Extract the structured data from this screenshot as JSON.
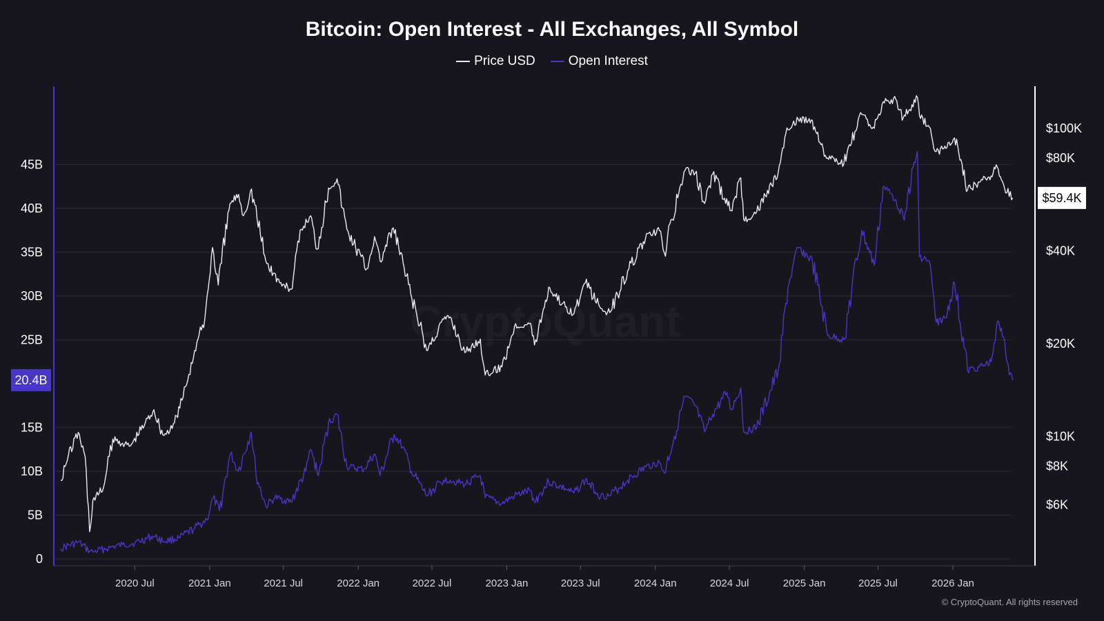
{
  "colors": {
    "background": "#17161d",
    "price": "#ececf0",
    "open_interest": "#4a35c9",
    "badge_oi": "#4a35c9",
    "grid": "#2a2a33"
  },
  "watermark": "CryptoQuant",
  "copyright": "© CryptoQuant. All rights reserved",
  "chart_data": {
    "type": "line",
    "title": "Bitcoin: Open Interest - All Exchanges, All Symbol",
    "legend": [
      "Price USD",
      "Open Interest"
    ],
    "x_range": [
      "2020-01-01",
      "2026-06-01"
    ],
    "x_ticks": [
      {
        "date": "2020-07-01",
        "label": "2020 Jul"
      },
      {
        "date": "2021-01-01",
        "label": "2021 Jan"
      },
      {
        "date": "2021-07-01",
        "label": "2021 Jul"
      },
      {
        "date": "2022-01-01",
        "label": "2022 Jan"
      },
      {
        "date": "2022-07-01",
        "label": "2022 Jul"
      },
      {
        "date": "2023-01-01",
        "label": "2023 Jan"
      },
      {
        "date": "2023-07-01",
        "label": "2023 Jul"
      },
      {
        "date": "2024-01-01",
        "label": "2024 Jan"
      },
      {
        "date": "2024-07-01",
        "label": "2024 Jul"
      },
      {
        "date": "2025-01-01",
        "label": "2025 Jan"
      },
      {
        "date": "2025-07-01",
        "label": "2025 Jul"
      },
      {
        "date": "2026-01-01",
        "label": "2026 Jan"
      }
    ],
    "left_axis": {
      "unit": "USD",
      "range": [
        0,
        50000000000
      ],
      "ticks": [
        {
          "value": 0,
          "label": "0"
        },
        {
          "value": 5000000000,
          "label": "5B"
        },
        {
          "value": 10000000000,
          "label": "10B"
        },
        {
          "value": 15000000000,
          "label": "15B"
        },
        {
          "value": 25000000000,
          "label": "25B"
        },
        {
          "value": 30000000000,
          "label": "30B"
        },
        {
          "value": 35000000000,
          "label": "35B"
        },
        {
          "value": 40000000000,
          "label": "40B"
        },
        {
          "value": 45000000000,
          "label": "45B"
        }
      ],
      "current_badge": {
        "value": 20400000000,
        "label": "20.4B"
      }
    },
    "right_axis": {
      "scale": "log",
      "range": [
        4000,
        130000
      ],
      "ticks": [
        {
          "value": 6000,
          "label": "$6K"
        },
        {
          "value": 8000,
          "label": "$8K"
        },
        {
          "value": 10000,
          "label": "$10K"
        },
        {
          "value": 20000,
          "label": "$20K"
        },
        {
          "value": 40000,
          "label": "$40K"
        },
        {
          "value": 80000,
          "label": "$80K"
        },
        {
          "value": 100000,
          "label": "$100K"
        }
      ],
      "current_badge": {
        "value": 59400,
        "label": "$59.4K"
      }
    },
    "series": [
      {
        "name": "Price USD",
        "axis": "right",
        "points": [
          [
            "2020-01-01",
            7200
          ],
          [
            "2020-01-20",
            8700
          ],
          [
            "2020-02-13",
            10300
          ],
          [
            "2020-03-01",
            8600
          ],
          [
            "2020-03-12",
            4900
          ],
          [
            "2020-03-20",
            6200
          ],
          [
            "2020-04-15",
            6800
          ],
          [
            "2020-05-08",
            9800
          ],
          [
            "2020-06-01",
            9500
          ],
          [
            "2020-06-20",
            9300
          ],
          [
            "2020-07-27",
            11100
          ],
          [
            "2020-08-17",
            12200
          ],
          [
            "2020-09-08",
            10100
          ],
          [
            "2020-10-01",
            10600
          ],
          [
            "2020-10-25",
            13100
          ],
          [
            "2020-11-25",
            19000
          ],
          [
            "2020-12-20",
            24000
          ],
          [
            "2021-01-08",
            41000
          ],
          [
            "2021-01-22",
            31000
          ],
          [
            "2021-02-20",
            57000
          ],
          [
            "2021-03-13",
            61000
          ],
          [
            "2021-03-25",
            52000
          ],
          [
            "2021-04-14",
            63500
          ],
          [
            "2021-05-19",
            37000
          ],
          [
            "2021-06-22",
            31500
          ],
          [
            "2021-07-20",
            30000
          ],
          [
            "2021-08-14",
            47000
          ],
          [
            "2021-09-06",
            52000
          ],
          [
            "2021-09-22",
            40500
          ],
          [
            "2021-10-20",
            64000
          ],
          [
            "2021-11-10",
            68500
          ],
          [
            "2021-12-04",
            47000
          ],
          [
            "2022-01-22",
            35000
          ],
          [
            "2022-02-10",
            44500
          ],
          [
            "2022-02-24",
            37000
          ],
          [
            "2022-03-28",
            47500
          ],
          [
            "2022-05-10",
            29000
          ],
          [
            "2022-06-18",
            19000
          ],
          [
            "2022-07-30",
            24000
          ],
          [
            "2022-08-15",
            24400
          ],
          [
            "2022-09-20",
            18700
          ],
          [
            "2022-10-28",
            20700
          ],
          [
            "2022-11-09",
            15800
          ],
          [
            "2022-12-20",
            16800
          ],
          [
            "2023-01-20",
            22800
          ],
          [
            "2023-02-28",
            23300
          ],
          [
            "2023-03-10",
            19800
          ],
          [
            "2023-04-14",
            30500
          ],
          [
            "2023-05-25",
            26300
          ],
          [
            "2023-06-15",
            25000
          ],
          [
            "2023-07-13",
            31500
          ],
          [
            "2023-08-20",
            26000
          ],
          [
            "2023-09-11",
            25200
          ],
          [
            "2023-10-25",
            34500
          ],
          [
            "2023-12-08",
            44000
          ],
          [
            "2024-01-11",
            46500
          ],
          [
            "2024-01-23",
            39500
          ],
          [
            "2024-02-28",
            62000
          ],
          [
            "2024-03-14",
            73000
          ],
          [
            "2024-04-08",
            71500
          ],
          [
            "2024-05-01",
            57000
          ],
          [
            "2024-05-21",
            71000
          ],
          [
            "2024-07-05",
            54000
          ],
          [
            "2024-07-29",
            69000
          ],
          [
            "2024-08-05",
            50500
          ],
          [
            "2024-09-06",
            53500
          ],
          [
            "2024-10-29",
            72000
          ],
          [
            "2024-11-22",
            99000
          ],
          [
            "2024-12-17",
            107000
          ],
          [
            "2025-01-21",
            106000
          ],
          [
            "2025-02-27",
            80000
          ],
          [
            "2025-04-08",
            76500
          ],
          [
            "2025-05-22",
            111000
          ],
          [
            "2025-06-22",
            100000
          ],
          [
            "2025-07-14",
            122000
          ],
          [
            "2025-08-14",
            124000
          ],
          [
            "2025-09-01",
            108000
          ],
          [
            "2025-10-06",
            126000
          ],
          [
            "2025-10-11",
            110000
          ],
          [
            "2025-11-04",
            101000
          ],
          [
            "2025-11-21",
            84000
          ],
          [
            "2025-12-15",
            86000
          ],
          [
            "2026-01-05",
            93000
          ],
          [
            "2026-02-06",
            63000
          ],
          [
            "2026-03-15",
            68000
          ],
          [
            "2026-04-05",
            70000
          ],
          [
            "2026-04-20",
            75000
          ],
          [
            "2026-05-08",
            64000
          ],
          [
            "2026-05-28",
            59400
          ]
        ]
      },
      {
        "name": "Open Interest",
        "axis": "left",
        "points": [
          [
            "2020-01-01",
            1200000000
          ],
          [
            "2020-02-13",
            1900000000
          ],
          [
            "2020-03-12",
            900000000
          ],
          [
            "2020-03-20",
            800000000
          ],
          [
            "2020-05-01",
            1300000000
          ],
          [
            "2020-06-01",
            1600000000
          ],
          [
            "2020-07-01",
            1800000000
          ],
          [
            "2020-08-15",
            2600000000
          ],
          [
            "2020-09-10",
            2000000000
          ],
          [
            "2020-10-20",
            2400000000
          ],
          [
            "2020-11-25",
            3500000000
          ],
          [
            "2020-12-25",
            4500000000
          ],
          [
            "2021-01-10",
            7000000000
          ],
          [
            "2021-01-25",
            5500000000
          ],
          [
            "2021-02-21",
            12000000000
          ],
          [
            "2021-03-12",
            10000000000
          ],
          [
            "2021-04-13",
            14500000000
          ],
          [
            "2021-04-25",
            9500000000
          ],
          [
            "2021-05-19",
            6000000000
          ],
          [
            "2021-06-10",
            7000000000
          ],
          [
            "2021-07-20",
            6500000000
          ],
          [
            "2021-08-25",
            10000000000
          ],
          [
            "2021-09-06",
            12500000000
          ],
          [
            "2021-09-25",
            9500000000
          ],
          [
            "2021-10-20",
            15500000000
          ],
          [
            "2021-11-10",
            16500000000
          ],
          [
            "2021-12-04",
            10500000000
          ],
          [
            "2022-01-15",
            10200000000
          ],
          [
            "2022-02-10",
            12000000000
          ],
          [
            "2022-02-24",
            9500000000
          ],
          [
            "2022-03-30",
            14200000000
          ],
          [
            "2022-04-20",
            12800000000
          ],
          [
            "2022-05-12",
            10000000000
          ],
          [
            "2022-06-18",
            7200000000
          ],
          [
            "2022-07-30",
            9000000000
          ],
          [
            "2022-08-15",
            9000000000
          ],
          [
            "2022-09-20",
            8500000000
          ],
          [
            "2022-10-28",
            9500000000
          ],
          [
            "2022-11-09",
            7000000000
          ],
          [
            "2022-12-20",
            6300000000
          ],
          [
            "2023-01-20",
            7200000000
          ],
          [
            "2023-02-28",
            7800000000
          ],
          [
            "2023-03-10",
            6500000000
          ],
          [
            "2023-04-14",
            8800000000
          ],
          [
            "2023-05-25",
            8000000000
          ],
          [
            "2023-06-15",
            7500000000
          ],
          [
            "2023-07-13",
            9000000000
          ],
          [
            "2023-08-20",
            7200000000
          ],
          [
            "2023-09-11",
            7200000000
          ],
          [
            "2023-10-25",
            9000000000
          ],
          [
            "2023-12-08",
            10500000000
          ],
          [
            "2024-01-11",
            11000000000
          ],
          [
            "2024-01-23",
            9800000000
          ],
          [
            "2024-02-28",
            16000000000
          ],
          [
            "2024-03-14",
            18500000000
          ],
          [
            "2024-04-08",
            17500000000
          ],
          [
            "2024-05-01",
            14500000000
          ],
          [
            "2024-05-21",
            16500000000
          ],
          [
            "2024-06-25",
            19000000000
          ],
          [
            "2024-07-05",
            17000000000
          ],
          [
            "2024-07-29",
            19500000000
          ],
          [
            "2024-08-05",
            14500000000
          ],
          [
            "2024-09-06",
            15000000000
          ],
          [
            "2024-10-29",
            21500000000
          ],
          [
            "2024-11-22",
            31000000000
          ],
          [
            "2024-12-17",
            35500000000
          ],
          [
            "2025-01-21",
            34000000000
          ],
          [
            "2025-02-27",
            25500000000
          ],
          [
            "2025-04-08",
            25000000000
          ],
          [
            "2025-05-22",
            37500000000
          ],
          [
            "2025-06-22",
            33500000000
          ],
          [
            "2025-07-14",
            42500000000
          ],
          [
            "2025-08-14",
            41000000000
          ],
          [
            "2025-09-01",
            39000000000
          ],
          [
            "2025-10-06",
            46500000000
          ],
          [
            "2025-10-11",
            34500000000
          ],
          [
            "2025-11-04",
            34000000000
          ],
          [
            "2025-11-21",
            27000000000
          ],
          [
            "2025-12-15",
            27500000000
          ],
          [
            "2026-01-05",
            31500000000
          ],
          [
            "2026-02-06",
            21500000000
          ],
          [
            "2026-03-15",
            22000000000
          ],
          [
            "2026-04-05",
            22500000000
          ],
          [
            "2026-04-20",
            27000000000
          ],
          [
            "2026-05-08",
            25000000000
          ],
          [
            "2026-05-20",
            21000000000
          ],
          [
            "2026-05-28",
            20400000000
          ]
        ]
      }
    ]
  }
}
